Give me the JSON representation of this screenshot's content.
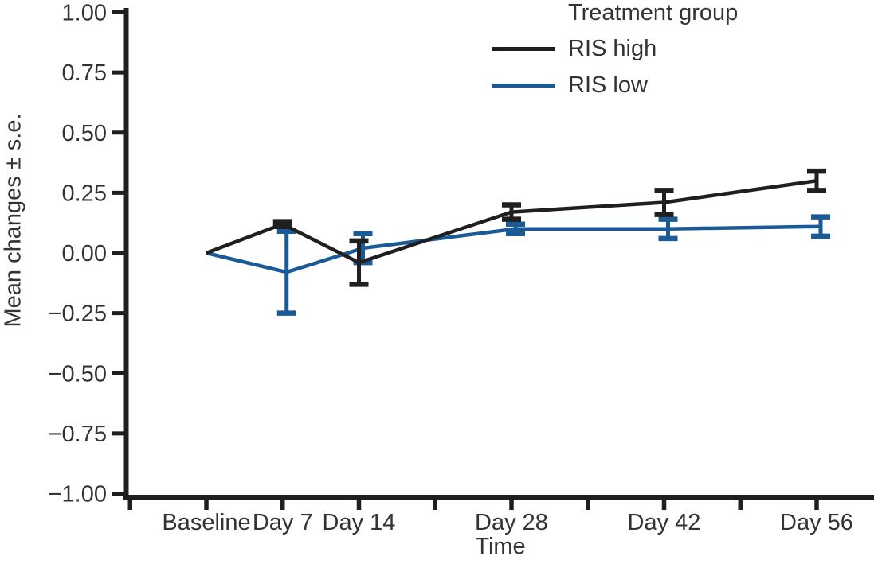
{
  "figure": {
    "background": "#ffffff",
    "text_color": "#333333"
  },
  "chart_data": {
    "type": "line",
    "title": "",
    "xlabel": "Time",
    "ylabel": "Mean changes ± s.e.",
    "categories": [
      "Baseline",
      "Day 7",
      "Day 14",
      "Day 28",
      "Day 42",
      "Day 56"
    ],
    "category_days": [
      0,
      7,
      14,
      28,
      42,
      56
    ],
    "x_tick_days": [
      -7,
      0,
      7,
      14,
      21,
      28,
      35,
      42,
      49,
      56
    ],
    "yticks": [
      1.0,
      0.75,
      0.5,
      0.25,
      0.0,
      -0.25,
      -0.5,
      -0.75,
      -1.0
    ],
    "ylim": [
      -1.0,
      1.0
    ],
    "grid": false,
    "error_bars": true,
    "legend": {
      "title": "Treatment group",
      "position": "top-right"
    },
    "series": [
      {
        "name": "RIS high",
        "color": "#1f1f1f",
        "means": [
          0.0,
          0.12,
          -0.04,
          0.17,
          0.21,
          0.3
        ],
        "se": [
          0.0,
          0.01,
          0.09,
          0.03,
          0.05,
          0.04
        ]
      },
      {
        "name": "RIS low",
        "color": "#1a5a96",
        "means": [
          0.0,
          -0.08,
          0.02,
          0.1,
          0.1,
          0.11
        ],
        "se": [
          0.0,
          0.17,
          0.06,
          0.02,
          0.04,
          0.04
        ]
      }
    ]
  }
}
